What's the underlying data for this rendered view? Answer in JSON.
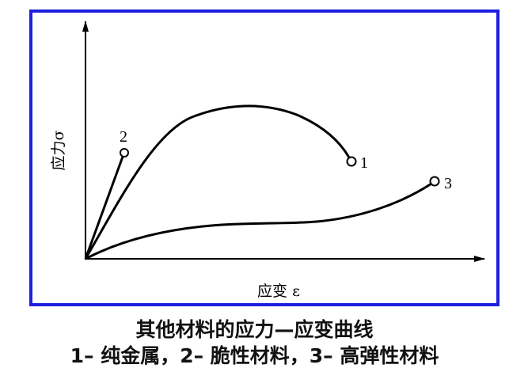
{
  "diagram": {
    "y_axis_label": "应力σ",
    "x_axis_label": "应变 ε",
    "curves": [
      {
        "label": "1"
      },
      {
        "label": "2"
      },
      {
        "label": "3"
      }
    ],
    "frame_color": "#1f1fe0"
  },
  "caption": {
    "title": "其他材料的应力—应变曲线",
    "legend": "1– 纯金属，2– 脆性材料，3– 高弹性材料"
  }
}
